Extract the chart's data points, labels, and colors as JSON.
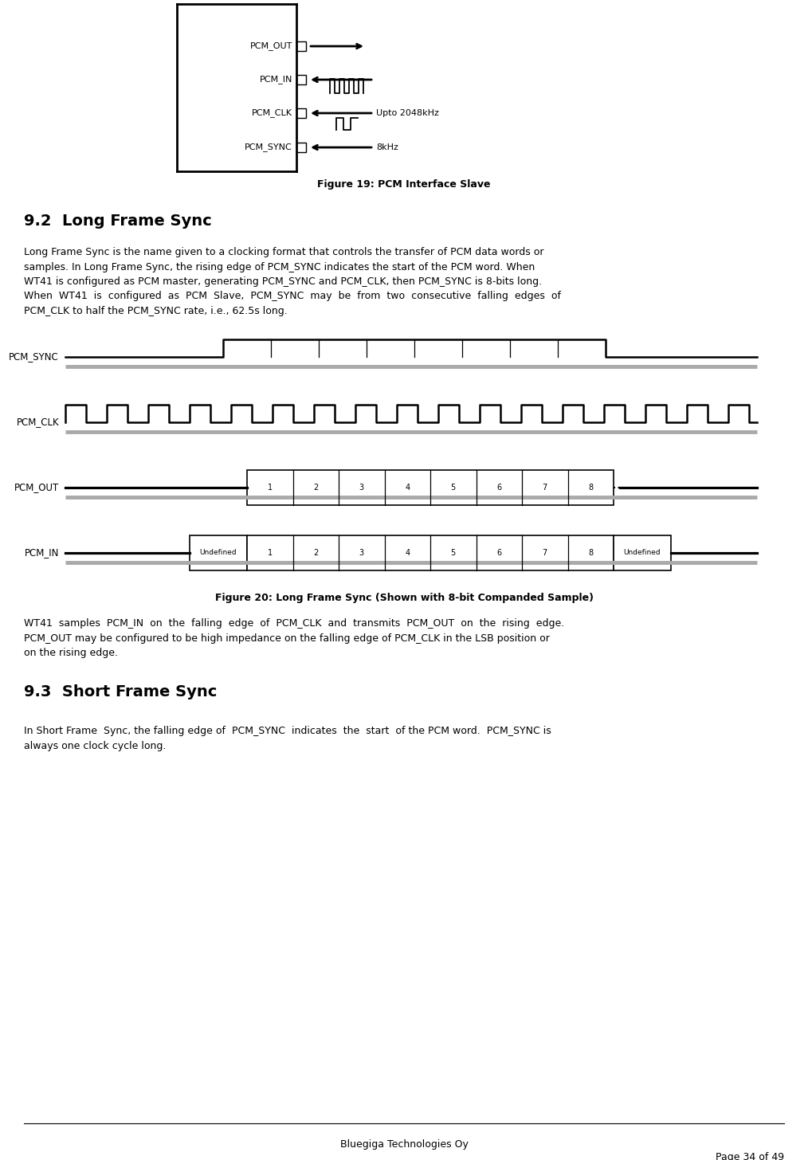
{
  "page_width": 10.14,
  "page_height": 14.56,
  "bg_color": "#ffffff",
  "fig19_caption": "Figure 19: PCM Interface Slave",
  "section92_title": "9.2  Long Frame Sync",
  "fig20_caption": "Figure 20: Long Frame Sync (Shown with 8-bit Companded Sample)",
  "section93_title": "9.3  Short Frame Sync",
  "footer_center": "Bluegiga Technologies Oy",
  "footer_right": "Page 34 of 49",
  "fig19_signals": [
    "PCM_OUT",
    "PCM_IN",
    "PCM_CLK",
    "PCM_SYNC"
  ],
  "fig19_arrows": [
    "right",
    "left",
    "left",
    "left"
  ],
  "fig19_labels_right": [
    "",
    "",
    "Upto 2048kHz",
    "8kHz"
  ],
  "body92_lines": [
    "Long Frame Sync is the name given to a clocking format that controls the transfer of PCM data words or",
    "samples. In Long Frame Sync, the rising edge of PCM_SYNC indicates the start of the PCM word. When",
    "WT41 is configured as PCM master, generating PCM_SYNC and PCM_CLK, then PCM_SYNC is 8-bits long.",
    "When  WT41  is  configured  as  PCM  Slave,  PCM_SYNC  may  be  from  two  consecutive  falling  edges  of",
    "PCM_CLK to half the PCM_SYNC rate, i.e., 62.5s long."
  ],
  "body93a_lines": [
    "WT41  samples  PCM_IN  on  the  falling  edge  of  PCM_CLK  and  transmits  PCM_OUT  on  the  rising  edge.",
    "PCM_OUT may be configured to be high impedance on the falling edge of PCM_CLK in the LSB position or",
    "on the rising edge."
  ],
  "body93b_lines": [
    "In Short Frame  Sync, the falling edge of  PCM_SYNC  indicates  the  start  of the PCM word.  PCM_SYNC is",
    "always one clock cycle long."
  ]
}
